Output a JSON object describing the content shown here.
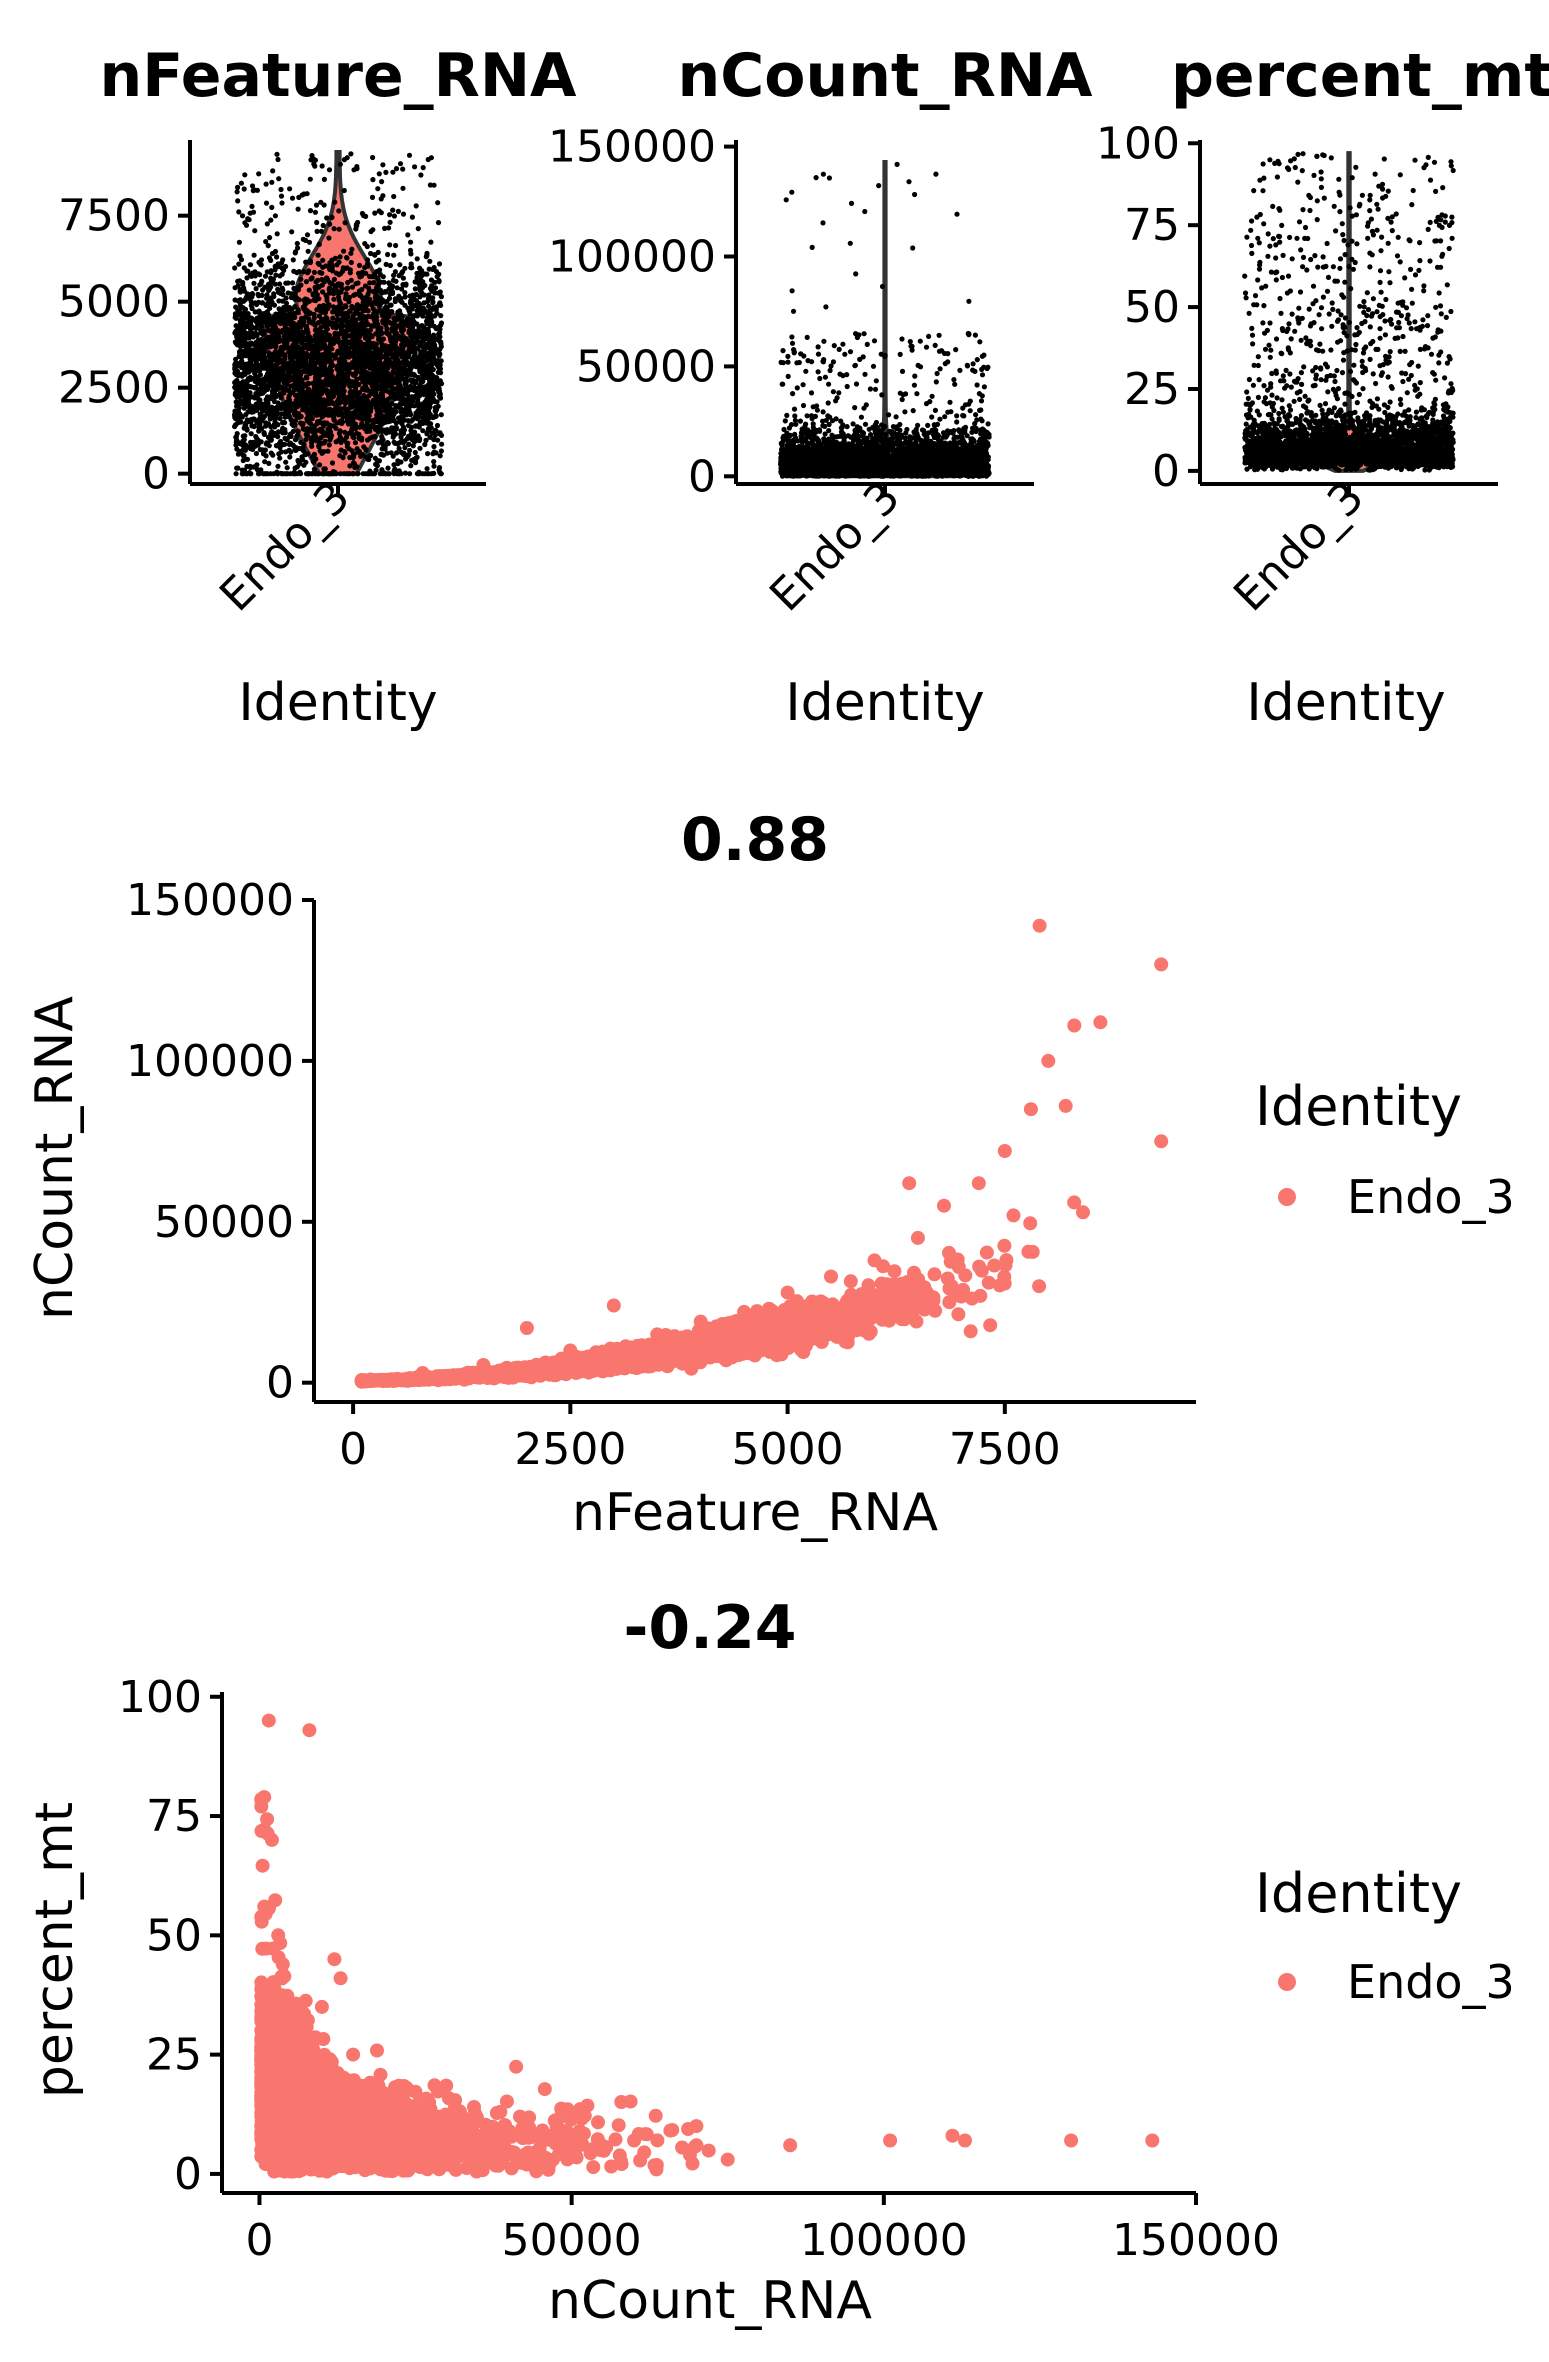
{
  "chart_data": [
    {
      "type": "violin",
      "title": "nFeature_RNA",
      "xlabel": "Identity",
      "ylabel": "",
      "categories": [
        "Endo_3"
      ],
      "yticks": [
        0,
        2500,
        5000,
        7500
      ],
      "ytick_labels": [
        "0",
        "2500",
        "5000",
        "7500"
      ],
      "ylim": [
        -300,
        9700
      ],
      "distribution": {
        "min": 0,
        "median": 3100,
        "max": 9350
      },
      "fill_color": "#F8766D",
      "point_color": "#000000"
    },
    {
      "type": "violin",
      "title": "nCount_RNA",
      "xlabel": "Identity",
      "ylabel": "",
      "categories": [
        "Endo_3"
      ],
      "yticks": [
        0,
        50000,
        100000,
        150000
      ],
      "ytick_labels": [
        "0",
        "50000",
        "100000",
        "150000"
      ],
      "ylim": [
        -3500,
        153000
      ],
      "distribution": {
        "min": 0,
        "median": 8000,
        "max": 143000
      },
      "fill_color": "#F8766D",
      "point_color": "#000000"
    },
    {
      "type": "violin",
      "title": "percent_mt",
      "xlabel": "Identity",
      "ylabel": "",
      "categories": [
        "Endo_3"
      ],
      "yticks": [
        0,
        25,
        50,
        75,
        100
      ],
      "ytick_labels": [
        "0",
        "25",
        "50",
        "75",
        "100"
      ],
      "ylim": [
        -4,
        101
      ],
      "distribution": {
        "min": 0,
        "median": 5,
        "max": 97
      },
      "fill_color": "#F8766D",
      "point_color": "#000000"
    },
    {
      "type": "scatter",
      "title": "0.88",
      "xlabel": "nFeature_RNA",
      "ylabel": "nCount_RNA",
      "xticks": [
        0,
        2500,
        5000,
        7500
      ],
      "xtick_labels": [
        "0",
        "2500",
        "5000",
        "7500"
      ],
      "yticks": [
        0,
        50000,
        100000,
        150000
      ],
      "ytick_labels": [
        "0",
        "50000",
        "100000",
        "150000"
      ],
      "xlim": [
        -450,
        9700
      ],
      "ylim": [
        -6000,
        150000
      ],
      "series": [
        {
          "name": "Endo_3",
          "color": "#F8766D",
          "x": [
            200,
            800,
            1500,
            2500,
            3500,
            4000,
            4500,
            5000,
            5500,
            6000,
            6500,
            6800,
            7200,
            7500,
            7800,
            8000,
            8200,
            7900,
            8300,
            8600,
            9300,
            9300,
            2000,
            3000,
            6400,
            7600
          ],
          "y": [
            1000,
            3000,
            5500,
            10000,
            15000,
            19000,
            22000,
            28000,
            33000,
            38000,
            45000,
            55000,
            62000,
            72000,
            85000,
            100000,
            86000,
            142000,
            111000,
            112000,
            130000,
            75000,
            17000,
            24000,
            62000,
            52000
          ]
        }
      ],
      "legend": {
        "title": "Identity",
        "labels": [
          "Endo_3"
        ],
        "placement": "right"
      }
    },
    {
      "type": "scatter",
      "title": "-0.24",
      "xlabel": "nCount_RNA",
      "ylabel": "percent_mt",
      "xticks": [
        0,
        50000,
        100000,
        150000
      ],
      "xtick_labels": [
        "0",
        "50000",
        "100000",
        "150000"
      ],
      "yticks": [
        0,
        25,
        50,
        75,
        100
      ],
      "ytick_labels": [
        "0",
        "25",
        "50",
        "75",
        "100"
      ],
      "xlim": [
        -6000,
        150000
      ],
      "ylim": [
        -4,
        101
      ],
      "series": [
        {
          "name": "Endo_3",
          "color": "#F8766D",
          "x": [
            1500,
            2000,
            3000,
            5000,
            8000,
            10000,
            12000,
            15000,
            20000,
            25000,
            30000,
            40000,
            50000,
            60000,
            70000,
            75000,
            85000,
            101000,
            111000,
            113000,
            130000,
            143000,
            8000,
            13000
          ],
          "y": [
            95,
            70,
            50,
            30,
            20,
            35,
            45,
            25,
            15,
            12,
            10,
            9,
            8,
            7,
            6,
            3,
            6,
            7,
            8,
            7,
            7,
            7,
            93,
            41
          ]
        }
      ],
      "legend": {
        "title": "Identity",
        "labels": [
          "Endo_3"
        ],
        "placement": "right"
      }
    }
  ]
}
